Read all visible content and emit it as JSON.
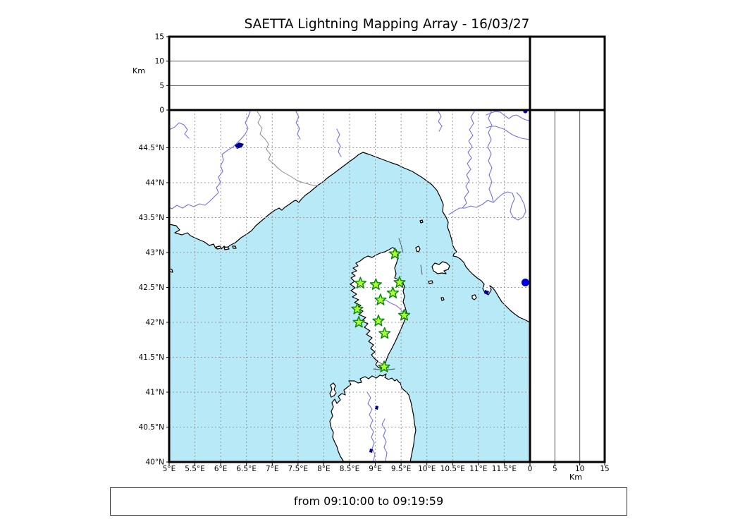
{
  "title": "SAETTA Lightning Mapping Array - 16/03/27",
  "footer": "from 09:10:00 to 09:19:59",
  "map": {
    "extent": {
      "lon_min": 5,
      "lon_max": 12,
      "lat_min": 40,
      "lat_max": 45.04
    },
    "lon_ticks": [
      {
        "value": 5,
        "label": "5°E"
      },
      {
        "value": 5.5,
        "label": "5.5°E"
      },
      {
        "value": 6,
        "label": "6°E"
      },
      {
        "value": 6.5,
        "label": "6.5°E"
      },
      {
        "value": 7,
        "label": "7°E"
      },
      {
        "value": 7.5,
        "label": "7.5°E"
      },
      {
        "value": 8,
        "label": "8°E"
      },
      {
        "value": 8.5,
        "label": "8.5°E"
      },
      {
        "value": 9,
        "label": "9°E"
      },
      {
        "value": 9.5,
        "label": "9.5°E"
      },
      {
        "value": 10,
        "label": "10°E"
      },
      {
        "value": 10.5,
        "label": "10.5°E"
      },
      {
        "value": 11,
        "label": "11°E"
      },
      {
        "value": 11.5,
        "label": "11.5°E"
      }
    ],
    "lat_ticks": [
      {
        "value": 40,
        "label": "40°N"
      },
      {
        "value": 40.5,
        "label": "40.5°N"
      },
      {
        "value": 41,
        "label": "41°N"
      },
      {
        "value": 41.5,
        "label": "41.5°N"
      },
      {
        "value": 42,
        "label": "42°N"
      },
      {
        "value": 42.5,
        "label": "42.5°N"
      },
      {
        "value": 43,
        "label": "43°N"
      },
      {
        "value": 43.5,
        "label": "43.5°N"
      },
      {
        "value": 44,
        "label": "44°N"
      },
      {
        "value": 44.5,
        "label": "44.5°N"
      }
    ],
    "grid_lons": [
      5.5,
      6,
      6.5,
      7,
      7.5,
      8,
      8.5,
      9,
      9.5,
      10,
      10.5,
      11,
      11.5
    ],
    "grid_lats": [
      40.5,
      41,
      41.5,
      42,
      42.5,
      43,
      43.5,
      44,
      44.5
    ]
  },
  "altitude_axis": {
    "label": "Km",
    "ticks": [
      {
        "value": 0,
        "label": "0"
      },
      {
        "value": 5,
        "label": "5"
      },
      {
        "value": 10,
        "label": "10"
      },
      {
        "value": 15,
        "label": "15"
      }
    ],
    "max_km": 15,
    "gridlines_km": [
      5,
      10
    ]
  },
  "stations": [
    {
      "lon": 9.38,
      "lat": 42.98
    },
    {
      "lon": 8.71,
      "lat": 42.56
    },
    {
      "lon": 9.01,
      "lat": 42.54
    },
    {
      "lon": 9.47,
      "lat": 42.57
    },
    {
      "lon": 9.34,
      "lat": 42.42
    },
    {
      "lon": 9.1,
      "lat": 42.32
    },
    {
      "lon": 8.65,
      "lat": 42.19
    },
    {
      "lon": 9.56,
      "lat": 42.1
    },
    {
      "lon": 9.06,
      "lat": 42.02
    },
    {
      "lon": 8.68,
      "lat": 42.0
    },
    {
      "lon": 9.18,
      "lat": 41.84
    },
    {
      "lon": 9.17,
      "lat": 41.36
    }
  ],
  "lightning_sources": [
    {
      "lon": 11.91,
      "lat": 42.57,
      "alt_km": 0
    }
  ],
  "colors": {
    "sea": "#b7e9f7",
    "land": "#ffffff",
    "coast": "#000000",
    "river": "#7272ee",
    "country_border": "#8a8a8a",
    "map_grid": "#9a9a9a",
    "panel_grid": "#555555",
    "station_fill": "#adff2f",
    "station_edge": "#0b8a0b",
    "source_dot": "#0000dd",
    "lake": "#000090",
    "frame": "#000000"
  }
}
